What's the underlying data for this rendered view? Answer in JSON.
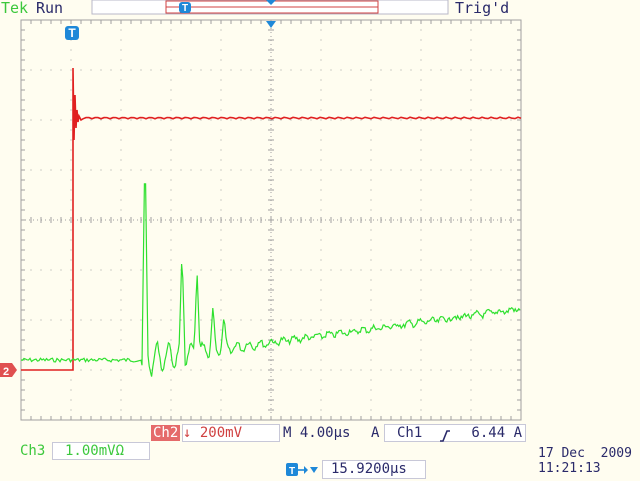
{
  "header": {
    "brand": "Tek",
    "run_status": "Run",
    "trigger_status": "Trig'd"
  },
  "markers": {
    "trigger_marker": "T",
    "channel2_marker": "2"
  },
  "status_bar": {
    "ch2_label": "Ch2",
    "ch2_scale": "↓ 200mV",
    "timebase": "M 4.00µs",
    "trigger_mode": "A",
    "trigger_source": "Ch1",
    "trigger_slope_icon": "rising-edge-icon",
    "trigger_level": "6.44 A",
    "ch3_label": "Ch3",
    "ch3_scale": "1.00mVΩ",
    "trigger_position_icon": "trigger-position-icon",
    "trigger_position": "15.9200µs",
    "date": "17 Dec  2009",
    "time": "11:21:13"
  },
  "colors": {
    "ch2": "#e02020",
    "ch3": "#2ee02e",
    "marker": "#1e88d8",
    "grid": "#a0a0a0",
    "background": "#fffdf0"
  }
}
